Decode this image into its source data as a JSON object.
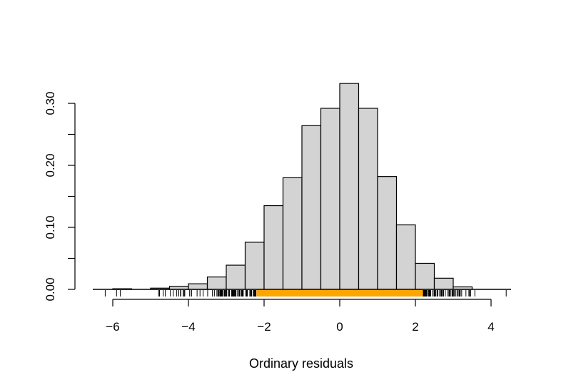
{
  "chart_data": {
    "type": "bar",
    "title": "",
    "xlabel": "Ordinary residuals",
    "ylabel": "",
    "xlim": [
      -6.5,
      4.5
    ],
    "ylim": [
      0,
      0.33
    ],
    "grid": false,
    "legend": "none",
    "x_ticks": [
      "−6",
      "−4",
      "−2",
      "0",
      "2",
      "4"
    ],
    "y_ticks": [
      "0.00",
      "0.10",
      "0.20",
      "0.30"
    ],
    "bin_edges": [
      -6.0,
      -5.5,
      -5.0,
      -4.5,
      -4.0,
      -3.5,
      -3.0,
      -2.5,
      -2.0,
      -1.5,
      -1.0,
      -0.5,
      0.0,
      0.5,
      1.0,
      1.5,
      2.0,
      2.5,
      3.0,
      3.5
    ],
    "values": [
      0.001,
      0.0,
      0.002,
      0.005,
      0.009,
      0.02,
      0.039,
      0.076,
      0.135,
      0.18,
      0.264,
      0.292,
      0.332,
      0.292,
      0.182,
      0.104,
      0.042,
      0.018,
      0.004
    ],
    "rug": {
      "central_range": [
        -2.2,
        2.2
      ],
      "central_color": "#FFA500"
    },
    "colors": {
      "bar_fill": "#D3D3D3",
      "bar_stroke": "#000000",
      "rug": "#000000"
    }
  }
}
